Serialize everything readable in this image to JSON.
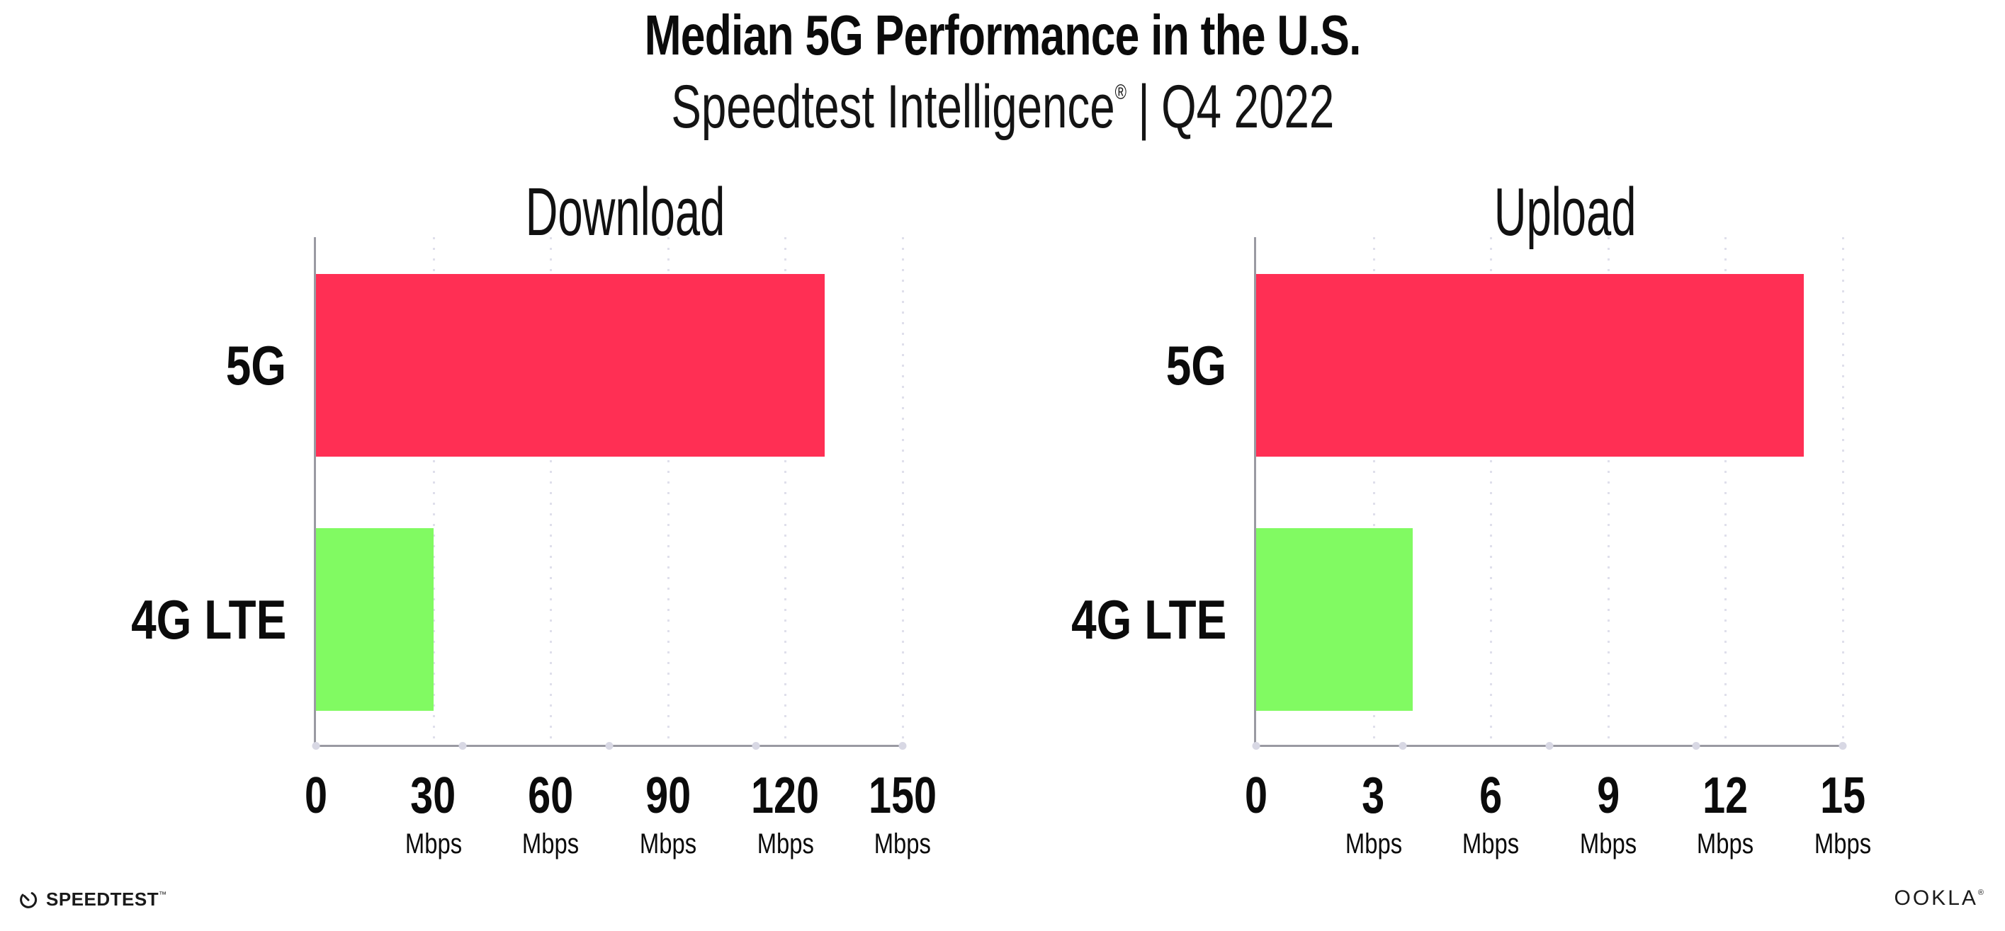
{
  "header": {
    "title": "Median 5G Performance in the U.S.",
    "subtitle_brand": "Speedtest Intelligence",
    "subtitle_registered": "®",
    "subtitle_separator": "|",
    "subtitle_period": "Q4 2022"
  },
  "chart_data": [
    {
      "type": "bar",
      "orientation": "horizontal",
      "title": "Download",
      "categories": [
        "5G",
        "4G LTE"
      ],
      "values": [
        130,
        30
      ],
      "unit": "Mbps",
      "xlabel": "",
      "ylabel": "",
      "xlim": [
        0,
        150
      ],
      "xticks": [
        0,
        30,
        60,
        90,
        120,
        150
      ],
      "grid": "vertical-dotted",
      "legend": "none",
      "bar_colors": [
        "#ff2f54",
        "#81fa62"
      ],
      "ticks": [
        {
          "label": "0",
          "unit": ""
        },
        {
          "label": "30",
          "unit": "Mbps"
        },
        {
          "label": "60",
          "unit": "Mbps"
        },
        {
          "label": "90",
          "unit": "Mbps"
        },
        {
          "label": "120",
          "unit": "Mbps"
        },
        {
          "label": "150",
          "unit": "Mbps"
        }
      ]
    },
    {
      "type": "bar",
      "orientation": "horizontal",
      "title": "Upload",
      "categories": [
        "5G",
        "4G LTE"
      ],
      "values": [
        14,
        4
      ],
      "unit": "Mbps",
      "xlabel": "",
      "ylabel": "",
      "xlim": [
        0,
        15
      ],
      "xticks": [
        0,
        3,
        6,
        9,
        12,
        15
      ],
      "grid": "vertical-dotted",
      "legend": "none",
      "bar_colors": [
        "#ff2f54",
        "#81fa62"
      ],
      "ticks": [
        {
          "label": "0",
          "unit": ""
        },
        {
          "label": "3",
          "unit": "Mbps"
        },
        {
          "label": "6",
          "unit": "Mbps"
        },
        {
          "label": "9",
          "unit": "Mbps"
        },
        {
          "label": "12",
          "unit": "Mbps"
        },
        {
          "label": "15",
          "unit": "Mbps"
        }
      ]
    }
  ],
  "footer": {
    "speedtest_label": "SPEEDTEST",
    "speedtest_tm": "™",
    "ookla_label": "OOKLA",
    "ookla_reg": "®"
  },
  "colors": {
    "bar_5g": "#ff2f54",
    "bar_4g_lte": "#81fa62",
    "axis": "#9a9aa2",
    "grid_dot": "#dfdfeb",
    "text": "#0b0b0b"
  }
}
